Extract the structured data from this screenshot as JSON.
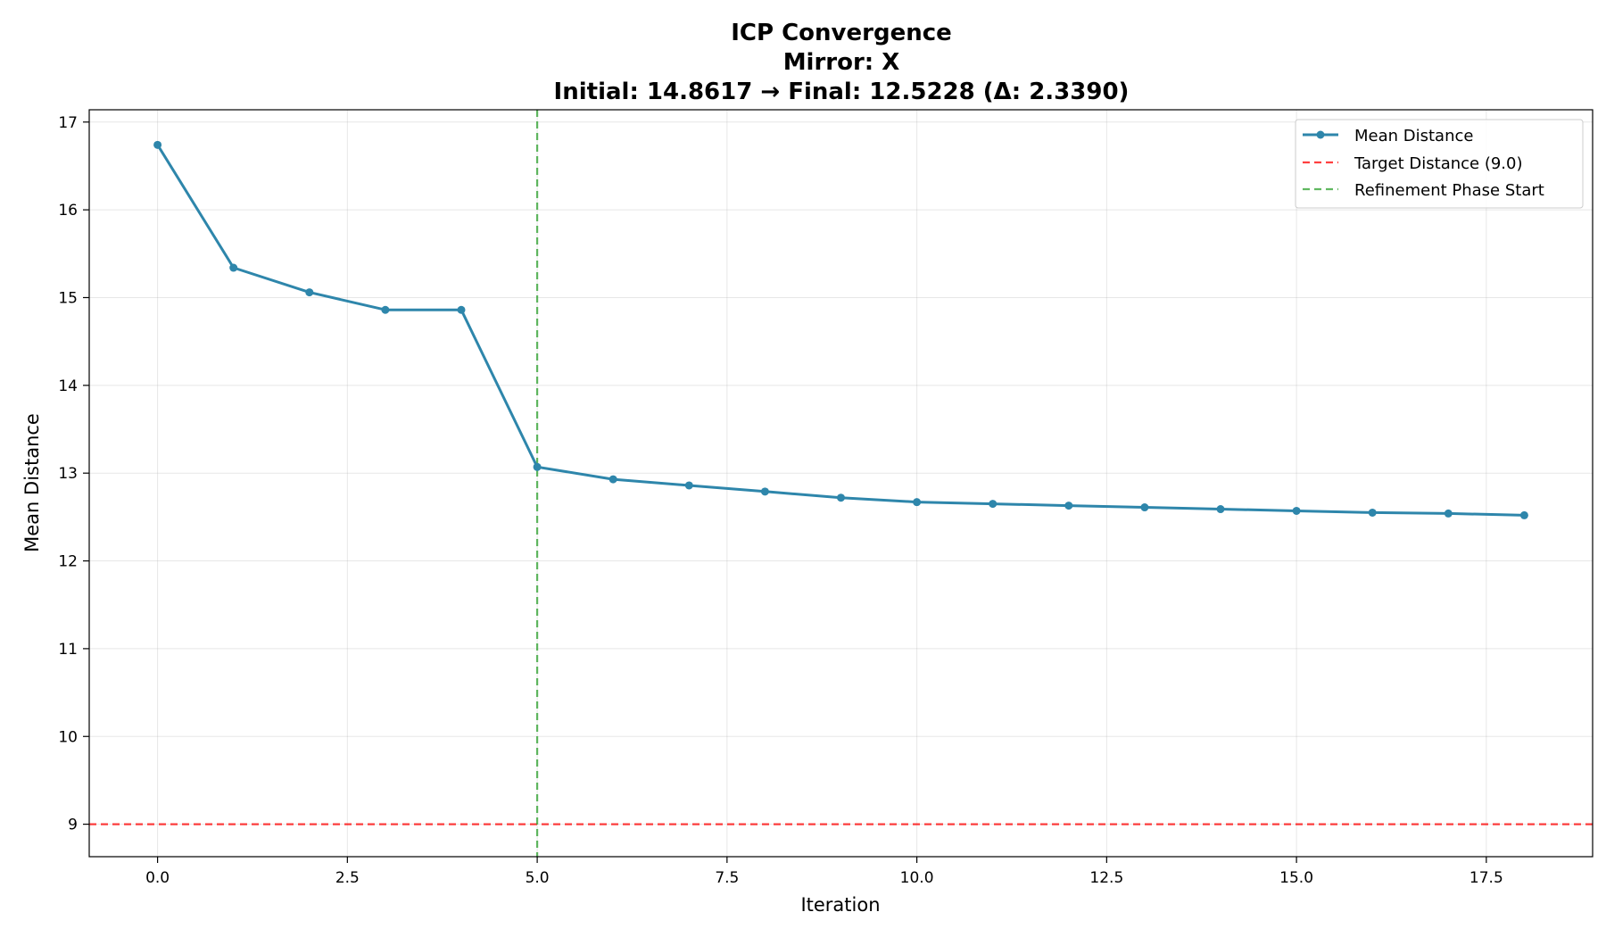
{
  "chart_data": {
    "type": "line",
    "title_lines": [
      "ICP Convergence",
      "Mirror: X",
      "Initial: 14.8617 → Final: 12.5228 (Δ: 2.3390)"
    ],
    "xlabel": "Iteration",
    "ylabel": "Mean Distance",
    "xlim": [
      -0.9,
      18.9
    ],
    "ylim": [
      8.63,
      17.14
    ],
    "xticks": [
      0,
      2.5,
      5,
      7.5,
      10,
      12.5,
      15,
      17.5
    ],
    "xtick_labels": [
      "0.0",
      "2.5",
      "5.0",
      "7.5",
      "10.0",
      "12.5",
      "15.0",
      "17.5"
    ],
    "yticks": [
      9,
      10,
      11,
      12,
      13,
      14,
      15,
      16,
      17
    ],
    "ytick_labels": [
      "9",
      "10",
      "11",
      "12",
      "13",
      "14",
      "15",
      "16",
      "17"
    ],
    "grid": true,
    "legend_position": "top-right",
    "series": [
      {
        "name": "Mean Distance",
        "color": "#2e86ab",
        "x": [
          0,
          1,
          2,
          3,
          4,
          5,
          6,
          7,
          8,
          9,
          10,
          11,
          12,
          13,
          14,
          15,
          16,
          17,
          18
        ],
        "y": [
          16.74,
          15.34,
          15.06,
          14.86,
          14.86,
          13.07,
          12.93,
          12.86,
          12.79,
          12.72,
          12.67,
          12.65,
          12.63,
          12.61,
          12.59,
          12.57,
          12.55,
          12.54,
          12.52
        ]
      }
    ],
    "reference_lines": [
      {
        "name": "Target Distance (9.0)",
        "orientation": "horizontal",
        "value": 9.0,
        "color": "#ff0000",
        "style": "dashed"
      },
      {
        "name": "Refinement Phase Start",
        "orientation": "vertical",
        "value": 5,
        "color": "#2ca02c",
        "style": "dashed"
      }
    ]
  }
}
